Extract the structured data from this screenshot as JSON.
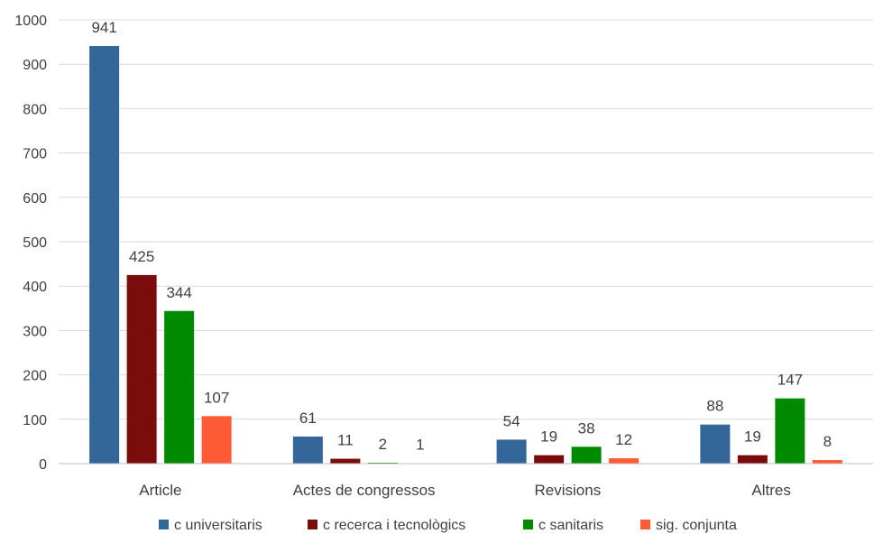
{
  "chart_data": {
    "type": "bar",
    "title": "",
    "xlabel": "",
    "ylabel": "",
    "ylim": [
      0,
      1000
    ],
    "yticks": [
      0,
      100,
      200,
      300,
      400,
      500,
      600,
      700,
      800,
      900,
      1000
    ],
    "grid": true,
    "legend": "bottom",
    "categories": [
      "Article",
      "Actes de congressos",
      "Revisions",
      "Altres"
    ],
    "series": [
      {
        "name": "c universitaris",
        "color": "#336699",
        "values": [
          941,
          61,
          54,
          88
        ]
      },
      {
        "name": "c recerca i tecnològics",
        "color": "#7B0C0C",
        "values": [
          425,
          11,
          19,
          19
        ]
      },
      {
        "name": "c sanitaris",
        "color": "#008A00",
        "values": [
          344,
          2,
          38,
          147
        ]
      },
      {
        "name": "sig. conjunta",
        "color": "#FF5A36",
        "values": [
          107,
          1,
          12,
          8
        ]
      }
    ]
  }
}
